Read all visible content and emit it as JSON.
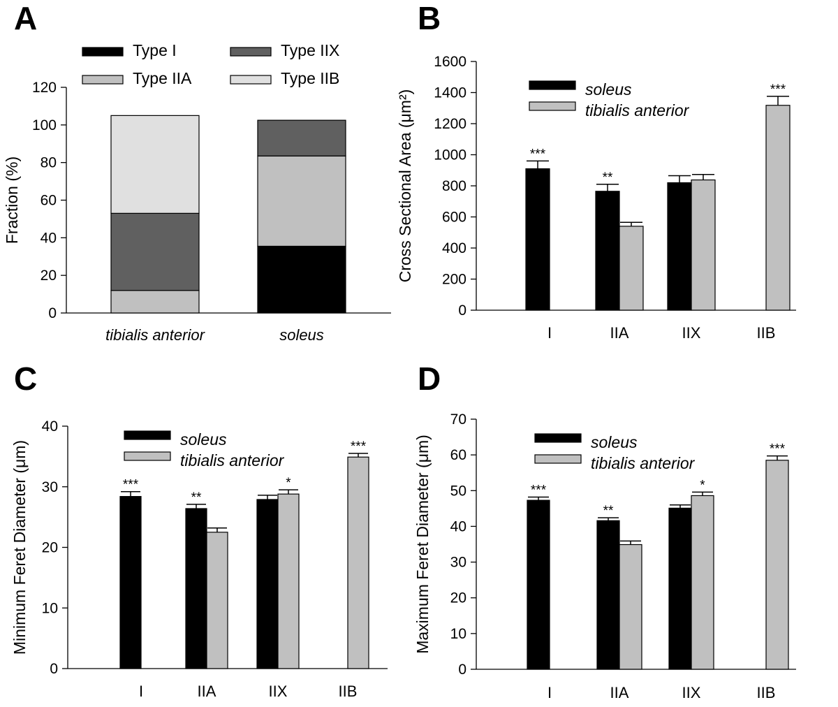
{
  "chart_data": [
    {
      "panel": "A",
      "type": "bar",
      "stacked": true,
      "categories": [
        "tibialis anterior",
        "soleus"
      ],
      "category_italic": true,
      "ylabel": "Fraction (%)",
      "ylim": [
        0,
        120
      ],
      "yticks": [
        0,
        20,
        40,
        60,
        80,
        100,
        120
      ],
      "series": [
        {
          "name": "Type I",
          "color": "#000000",
          "values": [
            0,
            35.5
          ]
        },
        {
          "name": "Type IIA",
          "color": "#c0c0c0",
          "values": [
            12,
            48
          ]
        },
        {
          "name": "Type IIX",
          "color": "#606060",
          "values": [
            41,
            19
          ]
        },
        {
          "name": "Type IIB",
          "color": "#e0e0e0",
          "values": [
            52,
            0
          ]
        }
      ],
      "legend_order": [
        "Type I",
        "Type IIX",
        "Type IIA",
        "Type IIB"
      ]
    },
    {
      "panel": "B",
      "type": "bar",
      "categories": [
        "I",
        "IIA",
        "IIX",
        "IIB"
      ],
      "ylabel": "Cross Sectional Area (μm²)",
      "ylim": [
        0,
        1600
      ],
      "yticks": [
        0,
        200,
        400,
        600,
        800,
        1000,
        1200,
        1400,
        1600
      ],
      "series": [
        {
          "name": "soleus",
          "color": "#000000",
          "values": [
            910,
            765,
            820,
            null
          ],
          "errors": [
            50,
            45,
            45,
            null
          ]
        },
        {
          "name": "tibialis anterior",
          "color": "#c0c0c0",
          "values": [
            null,
            540,
            838,
            1318
          ],
          "errors": [
            null,
            25,
            35,
            58
          ]
        }
      ],
      "significance": [
        {
          "category": "I",
          "series": "soleus",
          "label": "***"
        },
        {
          "category": "IIA",
          "series": "soleus",
          "label": "**"
        },
        {
          "category": "IIB",
          "series": "tibialis anterior",
          "label": "***"
        }
      ]
    },
    {
      "panel": "C",
      "type": "bar",
      "categories": [
        "I",
        "IIA",
        "IIX",
        "IIB"
      ],
      "ylabel": "Minimum Feret Diameter (μm)",
      "ylim": [
        0,
        40
      ],
      "yticks": [
        0,
        10,
        20,
        30,
        40
      ],
      "series": [
        {
          "name": "soleus",
          "color": "#000000",
          "values": [
            28.4,
            26.4,
            27.9,
            null
          ],
          "errors": [
            0.8,
            0.7,
            0.7,
            null
          ]
        },
        {
          "name": "tibialis anterior",
          "color": "#c0c0c0",
          "values": [
            null,
            22.5,
            28.8,
            34.9
          ],
          "errors": [
            null,
            0.7,
            0.7,
            0.6
          ]
        }
      ],
      "significance": [
        {
          "category": "I",
          "series": "soleus",
          "label": "***"
        },
        {
          "category": "IIA",
          "series": "soleus",
          "label": "**"
        },
        {
          "category": "IIX",
          "series": "tibialis anterior",
          "label": "*"
        },
        {
          "category": "IIB",
          "series": "tibialis anterior",
          "label": "***"
        }
      ]
    },
    {
      "panel": "D",
      "type": "bar",
      "categories": [
        "I",
        "IIA",
        "IIX",
        "IIB"
      ],
      "ylabel": "Maximum Feret Diameter (μm)",
      "ylim": [
        0,
        70
      ],
      "yticks": [
        0,
        10,
        20,
        30,
        40,
        50,
        60,
        70
      ],
      "series": [
        {
          "name": "soleus",
          "color": "#000000",
          "values": [
            47.3,
            41.6,
            45.1,
            null
          ],
          "errors": [
            0.9,
            0.8,
            0.9,
            null
          ]
        },
        {
          "name": "tibialis anterior",
          "color": "#c0c0c0",
          "values": [
            null,
            34.9,
            48.6,
            58.5
          ],
          "errors": [
            null,
            1.0,
            1.0,
            1.2
          ]
        }
      ],
      "significance": [
        {
          "category": "I",
          "series": "soleus",
          "label": "***"
        },
        {
          "category": "IIA",
          "series": "soleus",
          "label": "**"
        },
        {
          "category": "IIX",
          "series": "tibialis anterior",
          "label": "*"
        },
        {
          "category": "IIB",
          "series": "tibialis anterior",
          "label": "***"
        }
      ]
    }
  ]
}
